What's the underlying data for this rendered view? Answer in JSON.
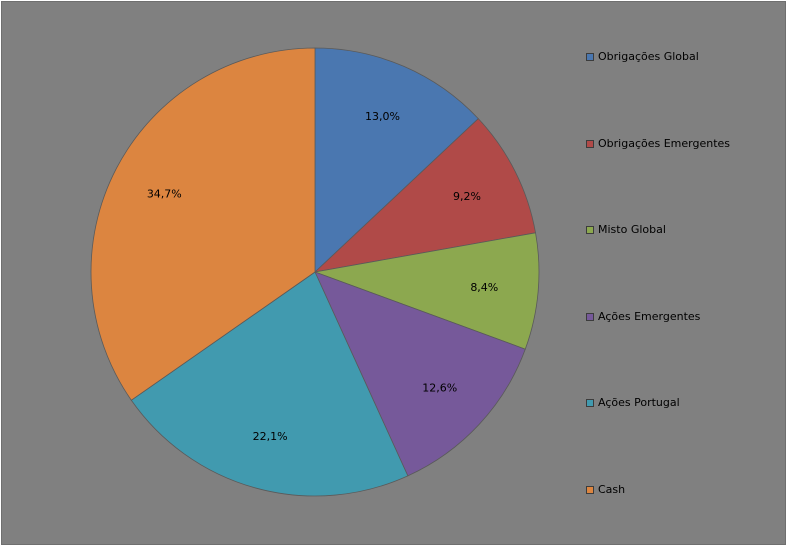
{
  "chart_data": {
    "type": "pie",
    "title": "",
    "categories": [
      "Obrigações Global",
      "Obrigações Emergentes",
      "Misto Global",
      "Ações Emergentes",
      "Ações Portugal",
      "Cash"
    ],
    "values": [
      13.0,
      9.2,
      8.4,
      12.6,
      22.1,
      34.7
    ],
    "data_labels": [
      "13,0%",
      "9,2%",
      "8,4%",
      "12,6%",
      "22,1%",
      "34,7%"
    ],
    "colors": [
      "#4a77b0",
      "#b04a48",
      "#8ca84f",
      "#76599a",
      "#419aaf",
      "#dc8540"
    ],
    "legend_position": "right",
    "start_angle": "12 o'clock",
    "direction": "clockwise",
    "background": "#808080"
  }
}
